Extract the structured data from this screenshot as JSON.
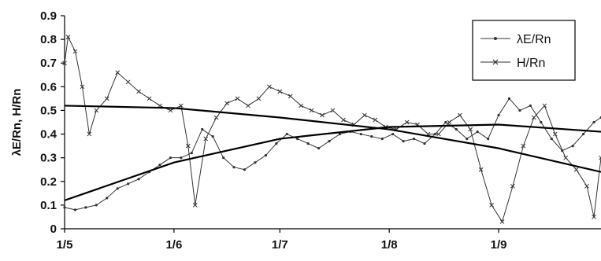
{
  "chart_data": {
    "type": "line",
    "title": "",
    "xlabel": "",
    "ylabel": "λE/Rn, H/Rn",
    "xlim": [
      "1/5",
      "30/9"
    ],
    "ylim": [
      0,
      0.9
    ],
    "x_ticks": [
      "1/5",
      "1/6",
      "1/7",
      "1/8",
      "1/9"
    ],
    "y_ticks": [
      "0",
      "0.1",
      "0.2",
      "0.3",
      "0.4",
      "0.5",
      "0.6",
      "0.7",
      "0.8",
      "0.9"
    ],
    "grid": false,
    "legend_position": "top-right",
    "series": [
      {
        "name": "λE/Rn",
        "marker": "dot",
        "color": "#333333",
        "x": [
          "1/5",
          "4/5",
          "7/5",
          "10/5",
          "13/5",
          "16/5",
          "19/5",
          "22/5",
          "25/5",
          "28/5",
          "31/5",
          "3/6",
          "6/6",
          "9/6",
          "12/6",
          "15/6",
          "18/6",
          "21/6",
          "24/6",
          "27/6",
          "30/6",
          "3/7",
          "6/7",
          "9/7",
          "12/7",
          "15/7",
          "18/7",
          "21/7",
          "24/7",
          "27/7",
          "30/7",
          "2/8",
          "5/8",
          "8/8",
          "11/8",
          "14/8",
          "17/8",
          "20/8",
          "23/8",
          "26/8",
          "29/8",
          "1/9",
          "4/9",
          "7/9",
          "10/9",
          "13/9",
          "16/9",
          "19/9",
          "22/9",
          "25/9",
          "28/9",
          "30/9"
        ],
        "values": [
          0.09,
          0.08,
          0.09,
          0.1,
          0.13,
          0.17,
          0.19,
          0.21,
          0.24,
          0.27,
          0.3,
          0.3,
          0.32,
          0.42,
          0.39,
          0.3,
          0.26,
          0.25,
          0.28,
          0.31,
          0.36,
          0.4,
          0.38,
          0.36,
          0.34,
          0.37,
          0.4,
          0.41,
          0.4,
          0.39,
          0.38,
          0.4,
          0.37,
          0.38,
          0.36,
          0.4,
          0.45,
          0.42,
          0.38,
          0.41,
          0.38,
          0.48,
          0.55,
          0.5,
          0.52,
          0.45,
          0.38,
          0.33,
          0.35,
          0.4,
          0.45,
          0.47
        ]
      },
      {
        "name": "H/Rn",
        "marker": "x",
        "color": "#333333",
        "x": [
          "1/5",
          "2/5",
          "4/5",
          "6/5",
          "8/5",
          "10/5",
          "13/5",
          "16/5",
          "19/5",
          "22/5",
          "25/5",
          "28/5",
          "31/5",
          "3/6",
          "5/6",
          "7/6",
          "10/6",
          "13/6",
          "16/6",
          "19/6",
          "22/6",
          "25/6",
          "28/6",
          "1/7",
          "4/7",
          "7/7",
          "10/7",
          "13/7",
          "16/7",
          "19/7",
          "22/7",
          "25/7",
          "28/7",
          "31/7",
          "3/8",
          "6/8",
          "9/8",
          "12/8",
          "15/8",
          "18/8",
          "21/8",
          "24/8",
          "27/8",
          "30/8",
          "2/9",
          "5/9",
          "8/9",
          "11/9",
          "14/9",
          "17/9",
          "20/9",
          "23/9",
          "26/9",
          "28/9",
          "30/9"
        ],
        "values": [
          0.7,
          0.81,
          0.75,
          0.6,
          0.4,
          0.5,
          0.55,
          0.66,
          0.62,
          0.58,
          0.55,
          0.52,
          0.5,
          0.52,
          0.35,
          0.1,
          0.38,
          0.47,
          0.53,
          0.55,
          0.52,
          0.55,
          0.6,
          0.58,
          0.56,
          0.52,
          0.5,
          0.48,
          0.5,
          0.46,
          0.44,
          0.48,
          0.46,
          0.43,
          0.42,
          0.45,
          0.44,
          0.4,
          0.4,
          0.45,
          0.48,
          0.42,
          0.25,
          0.1,
          0.03,
          0.18,
          0.35,
          0.47,
          0.52,
          0.4,
          0.3,
          0.25,
          0.18,
          0.05,
          0.3
        ]
      },
      {
        "name": "",
        "kind": "trend",
        "color": "#000000",
        "x": [
          "1/5",
          "1/6",
          "1/7",
          "1/8",
          "1/9",
          "30/9"
        ],
        "values": [
          0.12,
          0.28,
          0.38,
          0.43,
          0.44,
          0.41
        ]
      },
      {
        "name": "",
        "kind": "trend",
        "color": "#000000",
        "x": [
          "1/5",
          "1/6",
          "1/7",
          "1/8",
          "1/9",
          "30/9"
        ],
        "values": [
          0.52,
          0.51,
          0.47,
          0.42,
          0.34,
          0.24
        ]
      }
    ]
  }
}
